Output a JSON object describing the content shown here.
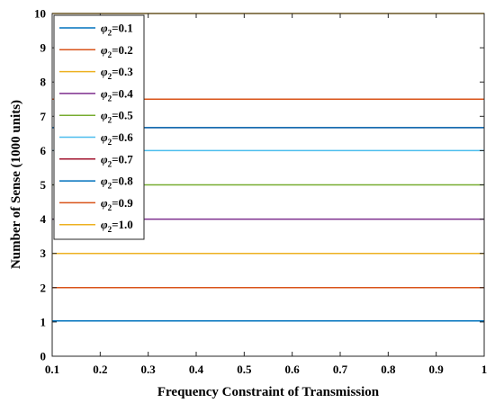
{
  "chart_data": {
    "type": "line",
    "title": "",
    "xlabel": "Frequency Constraint of Transmission",
    "ylabel": "Number of Sense (1000 units)",
    "xlim": [
      0.1,
      1
    ],
    "ylim": [
      0,
      10
    ],
    "x_ticks": [
      "0.1",
      "0.2",
      "0.3",
      "0.4",
      "0.5",
      "0.6",
      "0.7",
      "0.8",
      "0.9",
      "1"
    ],
    "y_ticks": [
      "0",
      "1",
      "2",
      "3",
      "4",
      "5",
      "6",
      "7",
      "8",
      "9",
      "10"
    ],
    "grid": false,
    "legend_position": "top-left",
    "x": [
      0.1,
      1
    ],
    "series": [
      {
        "symbol": "φ",
        "sub": "2",
        "value_text": "=0.1",
        "color": "#0072BD",
        "values": [
          1.03,
          1.03
        ]
      },
      {
        "symbol": "φ",
        "sub": "2",
        "value_text": "=0.2",
        "color": "#D95319",
        "values": [
          2.0,
          2.0
        ]
      },
      {
        "symbol": "φ",
        "sub": "2",
        "value_text": "=0.3",
        "color": "#EDB120",
        "values": [
          3.0,
          3.0
        ]
      },
      {
        "symbol": "φ",
        "sub": "2",
        "value_text": "=0.4",
        "color": "#7E2F8E",
        "values": [
          4.0,
          4.0
        ]
      },
      {
        "symbol": "φ",
        "sub": "2",
        "value_text": "=0.5",
        "color": "#77AC30",
        "values": [
          5.0,
          5.0
        ]
      },
      {
        "symbol": "φ",
        "sub": "2",
        "value_text": "=0.6",
        "color": "#4DBEEE",
        "values": [
          6.0,
          6.0
        ]
      },
      {
        "symbol": "φ",
        "sub": "2",
        "value_text": "=0.7",
        "color": "#A2142F",
        "values": [
          6.67,
          6.67
        ]
      },
      {
        "symbol": "φ",
        "sub": "2",
        "value_text": "=0.8",
        "color": "#0072BD",
        "values": [
          6.67,
          6.67
        ]
      },
      {
        "symbol": "φ",
        "sub": "2",
        "value_text": "=0.9",
        "color": "#D95319",
        "values": [
          7.5,
          7.5
        ]
      },
      {
        "symbol": "φ",
        "sub": "2",
        "value_text": "=1.0",
        "color": "#EDB120",
        "values": [
          10.0,
          10.0
        ]
      }
    ]
  }
}
